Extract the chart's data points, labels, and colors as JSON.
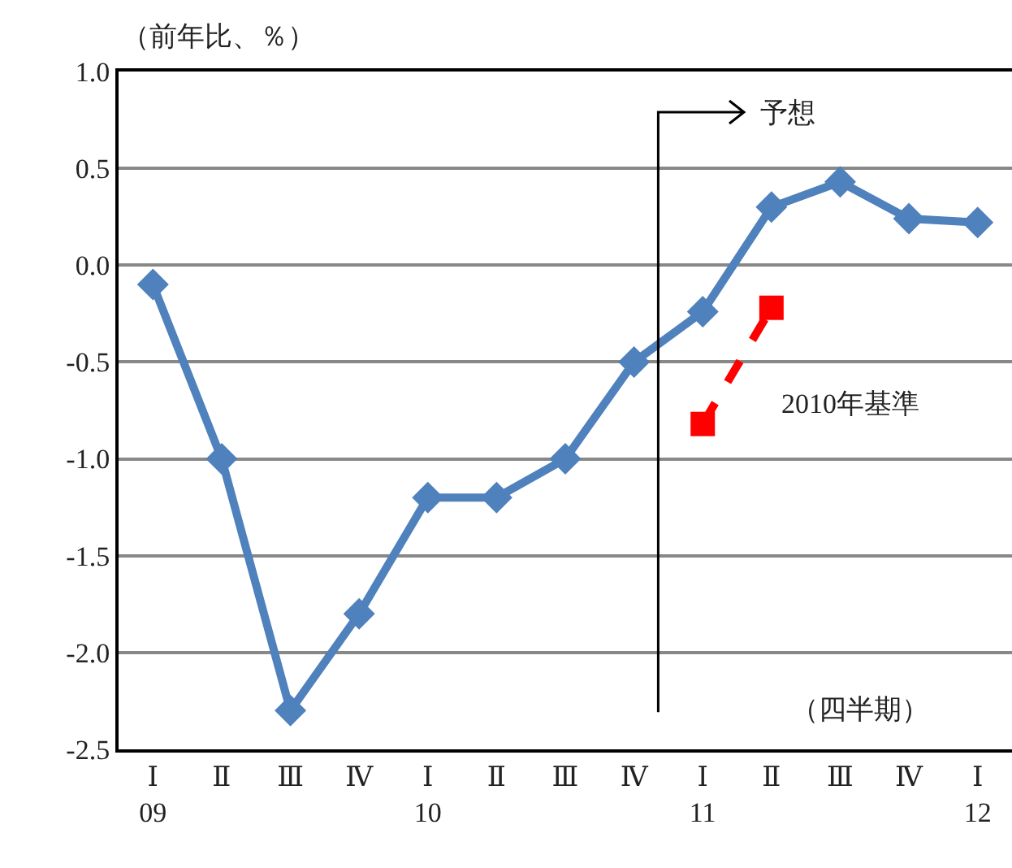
{
  "chart_data": {
    "type": "line",
    "ylabel": "（前年比、％）",
    "categories": [
      "Ⅰ\n09",
      "Ⅱ",
      "Ⅲ",
      "Ⅳ",
      "Ⅰ\n10",
      "Ⅱ",
      "Ⅲ",
      "Ⅳ",
      "Ⅰ\n11",
      "Ⅱ",
      "Ⅲ",
      "Ⅳ",
      "Ⅰ\n12"
    ],
    "series": [
      {
        "color": "#4f81bd",
        "marker": "diamond",
        "line_style": "solid",
        "values": [
          -0.1,
          -1.0,
          -2.3,
          -1.8,
          -1.2,
          -1.2,
          -1.0,
          -0.5,
          -0.24,
          0.3,
          0.43,
          0.24,
          0.22
        ]
      },
      {
        "name": "2010年基準",
        "color": "#ff0000",
        "marker": "square",
        "line_style": "dashed",
        "values": [
          null,
          null,
          null,
          null,
          null,
          null,
          null,
          null,
          -0.82,
          -0.22,
          null,
          null,
          null
        ]
      }
    ],
    "ylim": [
      -2.5,
      1.0
    ],
    "yticks": [
      {
        "value": -2.5,
        "label": "-2.5"
      },
      {
        "value": -2,
        "label": "-2.0"
      },
      {
        "value": -1.5,
        "label": "-1.5"
      },
      {
        "value": -1,
        "label": "-1.0"
      },
      {
        "value": -0.5,
        "label": "-0.5"
      },
      {
        "value": 0,
        "label": "0.0"
      },
      {
        "value": 0.5,
        "label": "0.5"
      },
      {
        "value": 1,
        "label": "1.0"
      }
    ],
    "grid": "y",
    "legend": false,
    "annotations": [
      "予想",
      "（四半期）"
    ]
  }
}
